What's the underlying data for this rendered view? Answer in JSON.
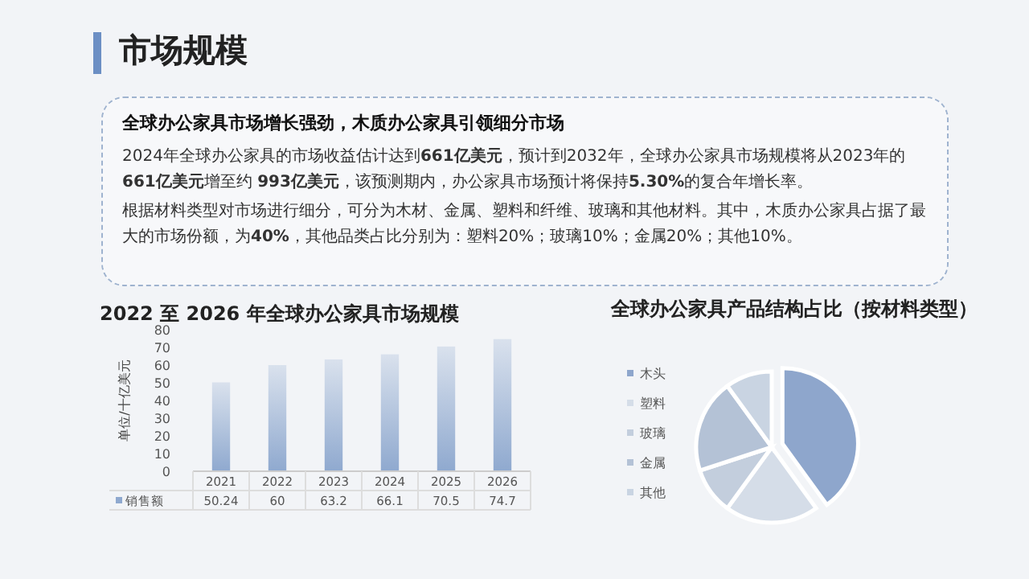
{
  "chart_data": [
    {
      "type": "other",
      "title": "市场规模",
      "subtitle": "全球办公家具市场增长强劲，木质办公家具引领细分市场",
      "annotations": [
        "2024年全球办公家具的市场收益估计达到**661亿美元**，预计到2032年，全球办公家具市场规模将从2023年的**661亿美元**增至约 **993亿美元**，该预测期内，办公家具市场预计将保持**5.30%**的复合年增长率。",
        "根据材料类型对市场进行细分，可分为木材、金属、塑料和纤维、玻璃和其他材料。其中，木质办公家具占据了最大的市场份额，为**40%**，其他品类占比分别为：塑料20%；玻璃10%；金属20%；其他10%。"
      ]
    },
    {
      "type": "bar",
      "title": "2022 至 2026 年全球办公家具市场规模",
      "ylabel": "单位/十亿美元",
      "categories": [
        "2021",
        "2022",
        "2023",
        "2024",
        "2025",
        "2026"
      ],
      "series": [
        {
          "name": "销售额",
          "color": "#8fa9cf",
          "values": [
            50.24,
            60,
            63.2,
            66.1,
            70.5,
            74.7
          ]
        }
      ],
      "ylim": [
        0,
        80
      ],
      "yticks": [
        0,
        10,
        20,
        30,
        40,
        50,
        60,
        70,
        80
      ],
      "data_labels": true,
      "grid": false,
      "legend": "bottom left"
    },
    {
      "type": "pie",
      "title": "全球办公家具产品结构占比（按材料类型）",
      "categories": [
        "木头",
        "塑料",
        "玻璃",
        "金属",
        "其他"
      ],
      "values": [
        40,
        20,
        10,
        20,
        10
      ],
      "colors": [
        "#8ea6cc",
        "#d5dde8",
        "#c3cedd",
        "#b4c2d6",
        "#c9d4e2"
      ],
      "legend": "left"
    }
  ]
}
